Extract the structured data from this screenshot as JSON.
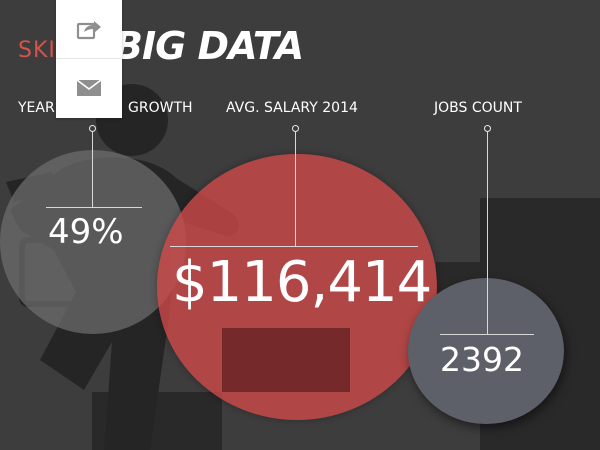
{
  "header": {
    "title_prefix": "SKI",
    "title_main": "BIG DATA"
  },
  "stats": [
    {
      "label": "YEAR-OVER-YEAR GROWTH",
      "visible_label_start": "YEAR",
      "visible_label_end": "GROWTH",
      "value": "49%"
    },
    {
      "label": "AVG. SALARY 2014",
      "value": "$116,414"
    },
    {
      "label": "JOBS COUNT",
      "value": "2392"
    }
  ],
  "share_panel": {
    "buttons": [
      "share-icon",
      "mail-icon"
    ]
  },
  "colors": {
    "background": "#3e3d3e",
    "accent": "#d4534d",
    "salary_circle": "#ce4848",
    "growth_circle": "#6e6d6e",
    "jobs_circle": "#5d6068"
  }
}
